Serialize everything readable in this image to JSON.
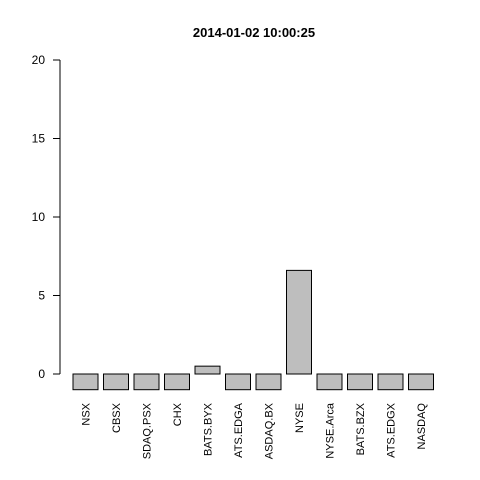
{
  "chart_data": {
    "type": "bar",
    "title": "2014-01-02 10:00:25",
    "categories": [
      "NSX",
      "CBSX",
      "SDAQ.PSX",
      "CHX",
      "BATS.BYX",
      "ATS.EDGA",
      "ASDAQ.BX",
      "NYSE",
      "NYSE.Arca",
      "BATS.BZX",
      "ATS.EDGX",
      "NASDAQ"
    ],
    "values": [
      -1,
      -1,
      -1,
      -1,
      0.5,
      -1,
      -1,
      6.6,
      -1,
      -1,
      -1,
      -1
    ],
    "ylim": [
      0,
      20
    ],
    "yticks": [
      0,
      5,
      10,
      15,
      20
    ],
    "bar_color": "#bebebe",
    "grid": false,
    "xlabel": "",
    "ylabel": ""
  }
}
